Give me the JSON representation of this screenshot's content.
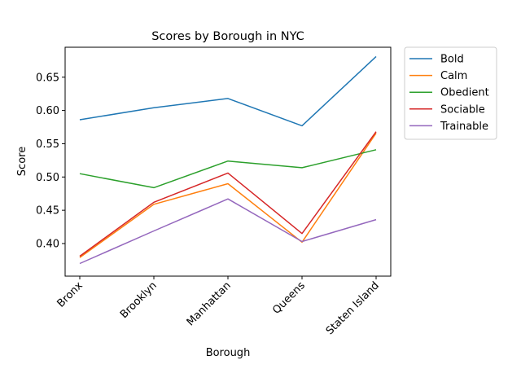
{
  "chart_data": {
    "type": "line",
    "title": "Scores by Borough in NYC",
    "xlabel": "Borough",
    "ylabel": "Score",
    "categories": [
      "Bronx",
      "Brooklyn",
      "Manhattan",
      "Queens",
      "Staten Island"
    ],
    "ylim": [
      0.351,
      0.695
    ],
    "yticks": [
      "0.40",
      "0.45",
      "0.50",
      "0.55",
      "0.60",
      "0.65"
    ],
    "grid": false,
    "legend_position": "outside-top-right",
    "series": [
      {
        "name": "Bold",
        "color": "#1f77b4",
        "values": [
          0.586,
          0.604,
          0.618,
          0.577,
          0.681
        ]
      },
      {
        "name": "Calm",
        "color": "#ff7f0e",
        "values": [
          0.379,
          0.459,
          0.49,
          0.402,
          0.566
        ]
      },
      {
        "name": "Obedient",
        "color": "#2ca02c",
        "values": [
          0.505,
          0.484,
          0.524,
          0.514,
          0.541
        ]
      },
      {
        "name": "Sociable",
        "color": "#d62728",
        "values": [
          0.381,
          0.462,
          0.506,
          0.415,
          0.568
        ]
      },
      {
        "name": "Trainable",
        "color": "#9467bd",
        "values": [
          0.37,
          0.419,
          0.467,
          0.403,
          0.436
        ]
      }
    ]
  }
}
